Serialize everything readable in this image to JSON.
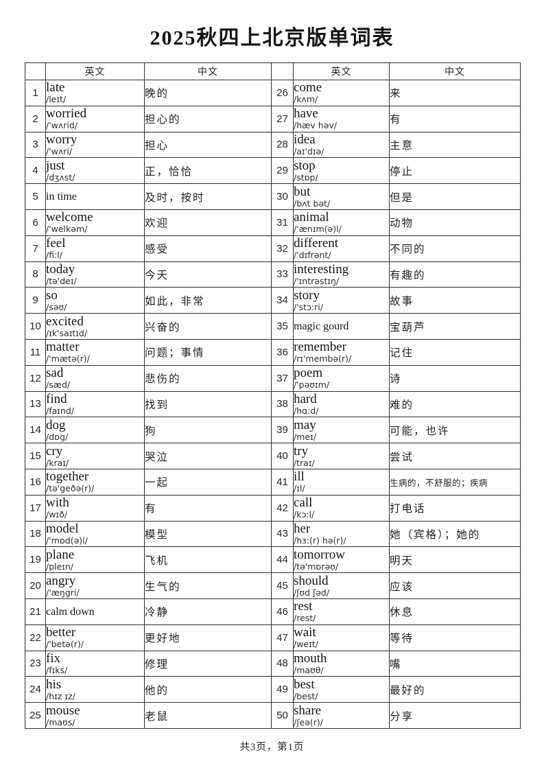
{
  "page": {
    "title": "2025秋四上北京版单词表",
    "footer": "共3页，第1页"
  },
  "table": {
    "headers": {
      "english": "英文",
      "chinese": "中文"
    }
  },
  "entries": [
    {
      "num": "1",
      "word": "late",
      "phonetic": "/leɪt/",
      "meaning": "晚的"
    },
    {
      "num": "2",
      "word": "worried",
      "phonetic": "/'wʌrid/",
      "meaning": "担心的"
    },
    {
      "num": "3",
      "word": "worry",
      "phonetic": "/'wʌri/",
      "meaning": "担心"
    },
    {
      "num": "4",
      "word": "just",
      "phonetic": "/dʒʌst/",
      "meaning": "正，恰恰"
    },
    {
      "num": "5",
      "word": "in time",
      "phonetic": "",
      "meaning": "及时，按时"
    },
    {
      "num": "6",
      "word": "welcome",
      "phonetic": "/'welkəm/",
      "meaning": "欢迎"
    },
    {
      "num": "7",
      "word": "feel",
      "phonetic": "/fi:l/",
      "meaning": "感受"
    },
    {
      "num": "8",
      "word": "today",
      "phonetic": "/tə'deɪ/",
      "meaning": "今天"
    },
    {
      "num": "9",
      "word": "so",
      "phonetic": "/səʊ/",
      "meaning": "如此，非常"
    },
    {
      "num": "10",
      "word": "excited",
      "phonetic": "/ɪk'saɪtɪd/",
      "meaning": "兴奋的"
    },
    {
      "num": "11",
      "word": "matter",
      "phonetic": "/'mætə(r)/",
      "meaning": "问题；事情"
    },
    {
      "num": "12",
      "word": "sad",
      "phonetic": "/sæd/",
      "meaning": "悲伤的"
    },
    {
      "num": "13",
      "word": "find",
      "phonetic": "/faɪnd/",
      "meaning": "找到"
    },
    {
      "num": "14",
      "word": "dog",
      "phonetic": "/dɒg/",
      "meaning": "狗"
    },
    {
      "num": "15",
      "word": "cry",
      "phonetic": "/kraɪ/",
      "meaning": "哭泣"
    },
    {
      "num": "16",
      "word": "together",
      "phonetic": "/tə'geðə(r)/",
      "meaning": "一起"
    },
    {
      "num": "17",
      "word": "with",
      "phonetic": "/wɪð/",
      "meaning": "有"
    },
    {
      "num": "18",
      "word": "model",
      "phonetic": "/'mɒd(ə)l/",
      "meaning": "模型"
    },
    {
      "num": "19",
      "word": "plane",
      "phonetic": "/pleɪn/",
      "meaning": "飞机"
    },
    {
      "num": "20",
      "word": "angry",
      "phonetic": "/'æŋgri/",
      "meaning": "生气的"
    },
    {
      "num": "21",
      "word": "calm down",
      "phonetic": "",
      "meaning": "冷静"
    },
    {
      "num": "22",
      "word": "better",
      "phonetic": "/'betə(r)/",
      "meaning": "更好地"
    },
    {
      "num": "23",
      "word": "fix",
      "phonetic": "/fɪks/",
      "meaning": "修理"
    },
    {
      "num": "24",
      "word": "his",
      "phonetic": "/hɪz ɪz/",
      "meaning": "他的"
    },
    {
      "num": "25",
      "word": "mouse",
      "phonetic": "/maʊs/",
      "meaning": "老鼠"
    },
    {
      "num": "26",
      "word": "come",
      "phonetic": "/kʌm/",
      "meaning": "来"
    },
    {
      "num": "27",
      "word": "have",
      "phonetic": "/hæv həv/",
      "meaning": "有"
    },
    {
      "num": "28",
      "word": "idea",
      "phonetic": "/aɪ'dɪə/",
      "meaning": "主意"
    },
    {
      "num": "29",
      "word": "stop",
      "phonetic": "/stɒp/",
      "meaning": "停止"
    },
    {
      "num": "30",
      "word": "but",
      "phonetic": "/bʌt bət/",
      "meaning": "但是"
    },
    {
      "num": "31",
      "word": "animal",
      "phonetic": "/'ænɪm(ə)l/",
      "meaning": "动物"
    },
    {
      "num": "32",
      "word": "different",
      "phonetic": "/'dɪfrənt/",
      "meaning": "不同的"
    },
    {
      "num": "33",
      "word": "interesting",
      "phonetic": "/'ɪntrəstɪŋ/",
      "meaning": "有趣的"
    },
    {
      "num": "34",
      "word": "story",
      "phonetic": "/'stɔ:ri/",
      "meaning": "故事"
    },
    {
      "num": "35",
      "word": "magic gourd",
      "phonetic": "",
      "meaning": "宝葫芦"
    },
    {
      "num": "36",
      "word": "remember",
      "phonetic": "/rɪ'membə(r)/",
      "meaning": "记住"
    },
    {
      "num": "37",
      "word": "poem",
      "phonetic": "/'pəʊɪm/",
      "meaning": "诗"
    },
    {
      "num": "38",
      "word": "hard",
      "phonetic": "/hɑ:d/",
      "meaning": "难的"
    },
    {
      "num": "39",
      "word": "may",
      "phonetic": "/meɪ/",
      "meaning": "可能，也许"
    },
    {
      "num": "40",
      "word": "try",
      "phonetic": "/traɪ/",
      "meaning": "尝试"
    },
    {
      "num": "41",
      "word": "ill",
      "phonetic": "/ɪl/",
      "meaning": "生病的，不舒服的；疾病"
    },
    {
      "num": "42",
      "word": "call",
      "phonetic": "/kɔ:l/",
      "meaning": "打电话"
    },
    {
      "num": "43",
      "word": "her",
      "phonetic": "/hɜ:(r) hə(r)/",
      "meaning": "她（宾格）；她的"
    },
    {
      "num": "44",
      "word": "tomorrow",
      "phonetic": "/tə'mɒrəʊ/",
      "meaning": "明天"
    },
    {
      "num": "45",
      "word": "should",
      "phonetic": "/ʃʊd ʃəd/",
      "meaning": "应该"
    },
    {
      "num": "46",
      "word": "rest",
      "phonetic": "/rest/",
      "meaning": "休息"
    },
    {
      "num": "47",
      "word": "wait",
      "phonetic": "/weɪt/",
      "meaning": "等待"
    },
    {
      "num": "48",
      "word": "mouth",
      "phonetic": "/maʊθ/",
      "meaning": "嘴"
    },
    {
      "num": "49",
      "word": "best",
      "phonetic": "/best/",
      "meaning": "最好的"
    },
    {
      "num": "50",
      "word": "share",
      "phonetic": "/ʃeə(r)/",
      "meaning": "分享"
    }
  ]
}
